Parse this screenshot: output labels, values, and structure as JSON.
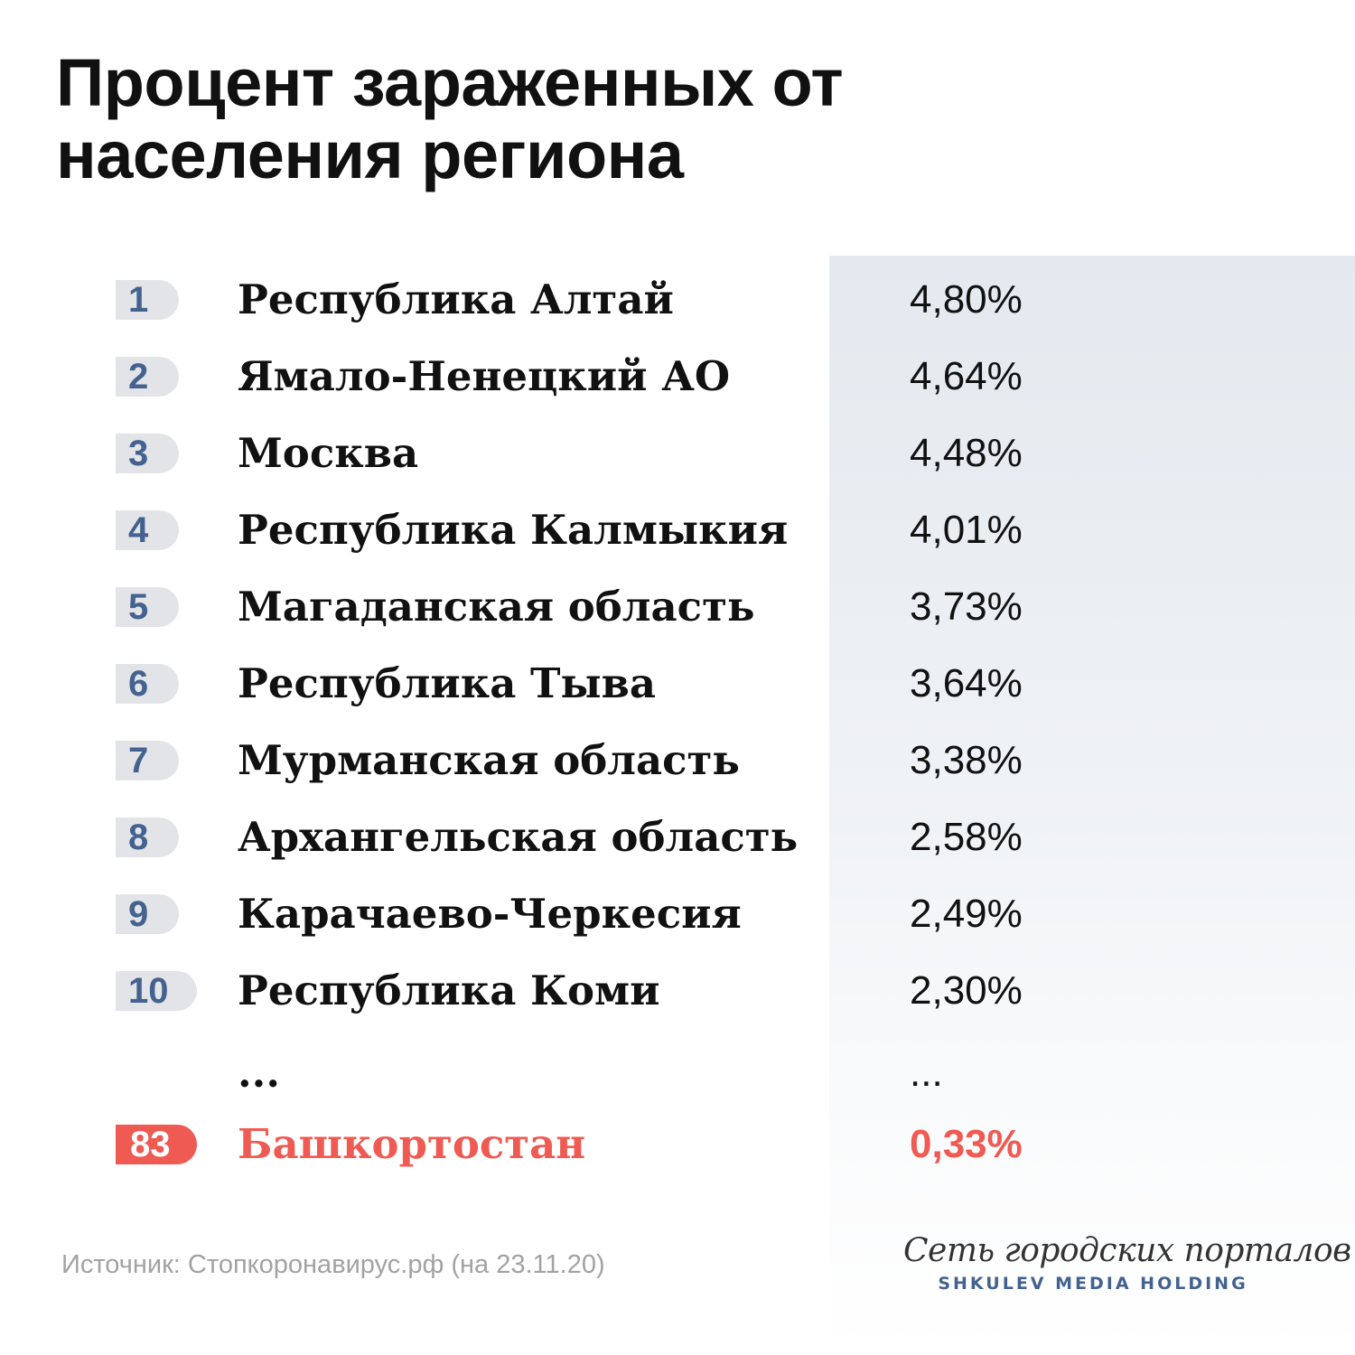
{
  "title": "Процент зараженных от населения региона",
  "ranking": [
    {
      "rank": "1",
      "region": "Республика Алтай",
      "value": "4,80%"
    },
    {
      "rank": "2",
      "region": "Ямало-Ненецкий АО",
      "value": "4,64%"
    },
    {
      "rank": "3",
      "region": "Москва",
      "value": "4,48%"
    },
    {
      "rank": "4",
      "region": "Республика Калмыкия",
      "value": "4,01%"
    },
    {
      "rank": "5",
      "region": "Магаданская область",
      "value": "3,73%"
    },
    {
      "rank": "6",
      "region": "Республика Тыва",
      "value": "3,64%"
    },
    {
      "rank": "7",
      "region": "Мурманская область",
      "value": "3,38%"
    },
    {
      "rank": "8",
      "region": "Архангельская область",
      "value": "2,58%"
    },
    {
      "rank": "9",
      "region": "Карачаево-Черкесия",
      "value": "2,49%"
    },
    {
      "rank": "10",
      "region": "Республика Коми",
      "value": "2,30%"
    }
  ],
  "ellipsis": {
    "region": "...",
    "value": "..."
  },
  "highlight": {
    "rank": "83",
    "region": "Башкортостан",
    "value": "0,33%",
    "color": "#ef5a52"
  },
  "source": "Источник: Стопкоронавирус.рф (на 23.11.20)",
  "brand": {
    "script": "Сеть городских порталов",
    "sub": "SHKULEV MEDIA HOLDING"
  },
  "colors": {
    "rank_badge": "#e2e4e8",
    "rank_text": "#44628f",
    "highlight": "#ef5a52",
    "panel": "#e4e9ef"
  }
}
